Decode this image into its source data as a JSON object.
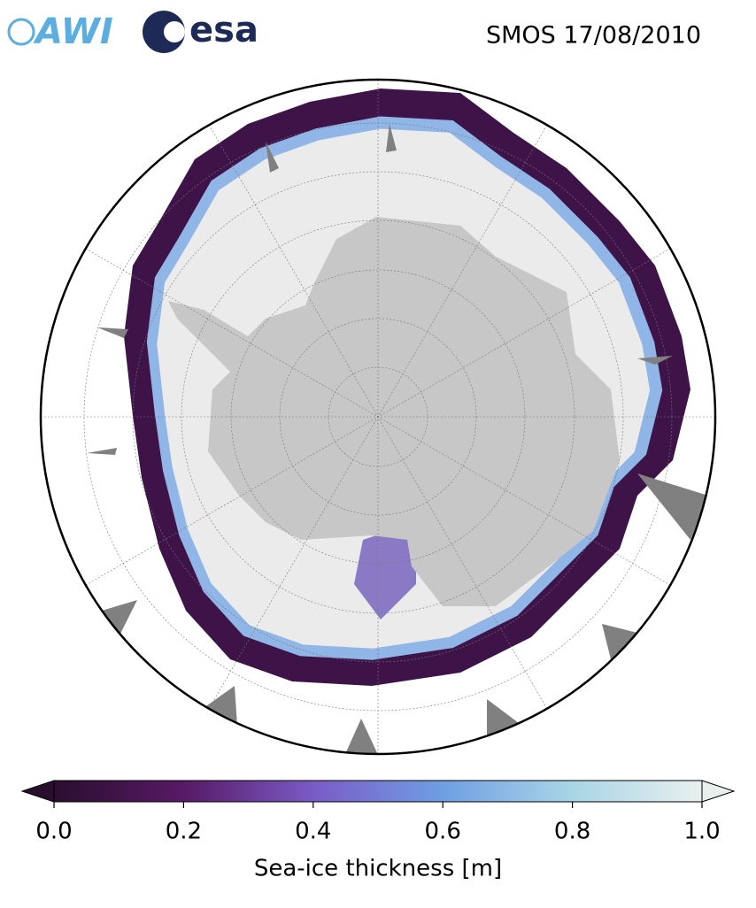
{
  "header": {
    "logos": [
      "AWI",
      "esa"
    ],
    "title": "SMOS 17/08/2010"
  },
  "colorbar": {
    "label": "Sea-ice thickness [m]",
    "lim": [
      0,
      1
    ],
    "ticks": [
      {
        "value": 0,
        "label": "0.0"
      },
      0.2,
      0.4,
      0.6,
      0.8,
      {
        "value": 1,
        "label": "1.0"
      }
    ],
    "colors": [
      "#2a0e2e",
      "#571a66",
      "#7a5bc6",
      "#6e9fe3",
      "#a9d5e6",
      "#e8f0ee"
    ]
  }
}
